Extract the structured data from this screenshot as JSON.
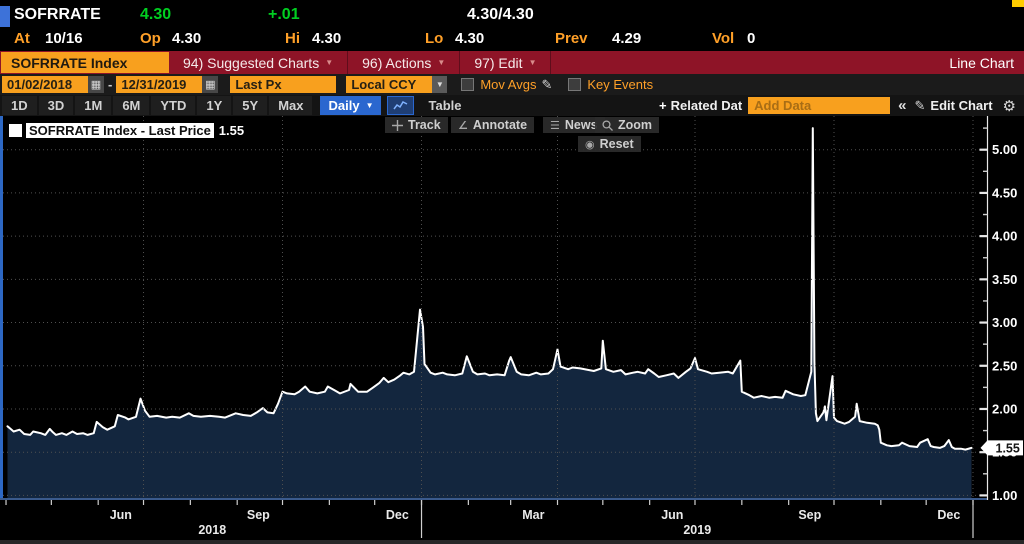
{
  "quote": {
    "ticker": "SOFRRATE",
    "last": "4.30",
    "change": "+.01",
    "bid_ask": "4.30/4.30",
    "fields": [
      {
        "label": "At",
        "value": "10/16"
      },
      {
        "label": "Op",
        "value": "4.30"
      },
      {
        "label": "Hi",
        "value": "4.30"
      },
      {
        "label": "Lo",
        "value": "4.30"
      },
      {
        "label": "Prev",
        "value": "4.29"
      },
      {
        "label": "Vol",
        "value": "0"
      }
    ]
  },
  "menubar": {
    "security": "SOFRRATE Index",
    "items": [
      {
        "label": "94) Suggested Charts"
      },
      {
        "label": "96) Actions"
      },
      {
        "label": "97) Edit"
      }
    ],
    "right_label": "Line Chart"
  },
  "toolbar": {
    "date_from": "01/02/2018",
    "date_to": "12/31/2019",
    "price_field": "Last Px",
    "currency": "Local CCY",
    "mov_avgs_label": "Mov Avgs",
    "key_events_label": "Key Events"
  },
  "periodbar": {
    "ranges": [
      "1D",
      "3D",
      "1M",
      "6M",
      "YTD",
      "1Y",
      "5Y",
      "Max"
    ],
    "frequency": "Daily",
    "table_label": "Table",
    "related_data_label": "Related Dat",
    "add_data_placeholder": "Add Data",
    "collapse_label": "«",
    "edit_chart_label": "Edit Chart"
  },
  "chart_tools": {
    "track": "Track",
    "annotate": "Annotate",
    "news": "News",
    "zoom": "Zoom",
    "reset": "Reset"
  },
  "legend": {
    "label": "SOFRRATE Index - Last Price",
    "value": "1.55"
  },
  "colors": {
    "amber": "#ffa028",
    "orange_box": "#f8a01e",
    "green": "#00cf21",
    "menu_red": "#8e1427",
    "selected_blue": "#2a67cf",
    "area_fill": "#13263e",
    "line": "#ffffff",
    "gridline": "#505050"
  },
  "chart_data": {
    "type": "area",
    "title": "SOFRRATE Index - Last Price",
    "xlabel": "",
    "ylabel": "",
    "ylim": [
      0.97,
      5.39
    ],
    "y_ticks": [
      1.0,
      1.5,
      2.0,
      2.5,
      3.0,
      3.5,
      4.0,
      4.5,
      5.0
    ],
    "grid_on": true,
    "legend_position": "top-left",
    "last_price": 1.55,
    "last_price_label": "1.55",
    "x_domain": [
      "2018-03-30",
      "2020-01-01"
    ],
    "grid_dates": [
      "2018-07-01",
      "2018-10-01",
      "2019-01-01",
      "2019-04-01",
      "2019-07-01",
      "2019-10-01",
      "2020-01-01"
    ],
    "x_month_labels": [
      {
        "label": "Jun",
        "date": "2018-06-16"
      },
      {
        "label": "Sep",
        "date": "2018-09-15"
      },
      {
        "label": "Dec",
        "date": "2018-12-16"
      },
      {
        "label": "Mar",
        "date": "2019-03-16"
      },
      {
        "label": "Jun",
        "date": "2019-06-16"
      },
      {
        "label": "Sep",
        "date": "2019-09-15"
      },
      {
        "label": "Dec",
        "date": "2019-12-16"
      }
    ],
    "year_tick_dates": [
      "2019-01-01",
      "2020-01-01"
    ],
    "year_labels": [
      {
        "label": "2018",
        "from": "2018-03-30",
        "to": "2019-01-01"
      },
      {
        "label": "2019",
        "from": "2019-01-01",
        "to": "2020-01-01"
      }
    ],
    "series": [
      {
        "name": "SOFRRATE Index - Last Price",
        "points": [
          [
            "2018-04-02",
            1.8
          ],
          [
            "2018-04-04",
            1.77
          ],
          [
            "2018-04-06",
            1.74
          ],
          [
            "2018-04-10",
            1.76
          ],
          [
            "2018-04-13",
            1.71
          ],
          [
            "2018-04-17",
            1.7
          ],
          [
            "2018-04-19",
            1.74
          ],
          [
            "2018-04-24",
            1.72
          ],
          [
            "2018-04-27",
            1.7
          ],
          [
            "2018-04-30",
            1.77
          ],
          [
            "2018-05-02",
            1.73
          ],
          [
            "2018-05-04",
            1.7
          ],
          [
            "2018-05-08",
            1.72
          ],
          [
            "2018-05-11",
            1.7
          ],
          [
            "2018-05-15",
            1.74
          ],
          [
            "2018-05-18",
            1.71
          ],
          [
            "2018-05-22",
            1.72
          ],
          [
            "2018-05-25",
            1.7
          ],
          [
            "2018-05-29",
            1.72
          ],
          [
            "2018-05-31",
            1.85
          ],
          [
            "2018-06-04",
            1.79
          ],
          [
            "2018-06-07",
            1.76
          ],
          [
            "2018-06-12",
            1.8
          ],
          [
            "2018-06-14",
            1.93
          ],
          [
            "2018-06-19",
            1.9
          ],
          [
            "2018-06-21",
            1.88
          ],
          [
            "2018-06-26",
            1.91
          ],
          [
            "2018-06-29",
            2.12
          ],
          [
            "2018-07-02",
            1.98
          ],
          [
            "2018-07-05",
            1.91
          ],
          [
            "2018-07-10",
            1.92
          ],
          [
            "2018-07-16",
            1.9
          ],
          [
            "2018-07-20",
            1.91
          ],
          [
            "2018-07-25",
            1.9
          ],
          [
            "2018-07-31",
            1.95
          ],
          [
            "2018-08-03",
            1.92
          ],
          [
            "2018-08-08",
            1.91
          ],
          [
            "2018-08-14",
            1.92
          ],
          [
            "2018-08-20",
            1.91
          ],
          [
            "2018-08-24",
            1.9
          ],
          [
            "2018-08-31",
            1.95
          ],
          [
            "2018-09-05",
            1.93
          ],
          [
            "2018-09-10",
            1.92
          ],
          [
            "2018-09-14",
            1.96
          ],
          [
            "2018-09-18",
            2.01
          ],
          [
            "2018-09-21",
            1.96
          ],
          [
            "2018-09-25",
            1.95
          ],
          [
            "2018-09-28",
            2.06
          ],
          [
            "2018-10-01",
            2.2
          ],
          [
            "2018-10-04",
            2.18
          ],
          [
            "2018-10-09",
            2.17
          ],
          [
            "2018-10-12",
            2.2
          ],
          [
            "2018-10-16",
            2.26
          ],
          [
            "2018-10-19",
            2.2
          ],
          [
            "2018-10-24",
            2.18
          ],
          [
            "2018-10-29",
            2.2
          ],
          [
            "2018-10-31",
            2.26
          ],
          [
            "2018-11-05",
            2.21
          ],
          [
            "2018-11-08",
            2.18
          ],
          [
            "2018-11-14",
            2.22
          ],
          [
            "2018-11-15",
            2.29
          ],
          [
            "2018-11-20",
            2.2
          ],
          [
            "2018-11-26",
            2.2
          ],
          [
            "2018-11-30",
            2.25
          ],
          [
            "2018-12-04",
            2.3
          ],
          [
            "2018-12-07",
            2.36
          ],
          [
            "2018-12-10",
            2.31
          ],
          [
            "2018-12-14",
            2.34
          ],
          [
            "2018-12-18",
            2.39
          ],
          [
            "2018-12-20",
            2.42
          ],
          [
            "2018-12-24",
            2.4
          ],
          [
            "2018-12-27",
            2.43
          ],
          [
            "2018-12-31",
            3.15
          ],
          [
            "2019-01-02",
            2.95
          ],
          [
            "2019-01-03",
            2.52
          ],
          [
            "2019-01-07",
            2.42
          ],
          [
            "2019-01-10",
            2.4
          ],
          [
            "2019-01-15",
            2.42
          ],
          [
            "2019-01-18",
            2.4
          ],
          [
            "2019-01-23",
            2.39
          ],
          [
            "2019-01-28",
            2.41
          ],
          [
            "2019-01-31",
            2.61
          ],
          [
            "2019-02-04",
            2.43
          ],
          [
            "2019-02-07",
            2.4
          ],
          [
            "2019-02-12",
            2.41
          ],
          [
            "2019-02-15",
            2.39
          ],
          [
            "2019-02-20",
            2.4
          ],
          [
            "2019-02-25",
            2.39
          ],
          [
            "2019-02-28",
            2.56
          ],
          [
            "2019-03-01",
            2.6
          ],
          [
            "2019-03-05",
            2.43
          ],
          [
            "2019-03-08",
            2.4
          ],
          [
            "2019-03-13",
            2.39
          ],
          [
            "2019-03-18",
            2.42
          ],
          [
            "2019-03-21",
            2.4
          ],
          [
            "2019-03-26",
            2.41
          ],
          [
            "2019-03-29",
            2.46
          ],
          [
            "2019-04-01",
            2.69
          ],
          [
            "2019-04-03",
            2.49
          ],
          [
            "2019-04-08",
            2.46
          ],
          [
            "2019-04-11",
            2.48
          ],
          [
            "2019-04-16",
            2.47
          ],
          [
            "2019-04-22",
            2.45
          ],
          [
            "2019-04-25",
            2.44
          ],
          [
            "2019-04-30",
            2.47
          ],
          [
            "2019-05-01",
            2.79
          ],
          [
            "2019-05-03",
            2.46
          ],
          [
            "2019-05-08",
            2.43
          ],
          [
            "2019-05-13",
            2.45
          ],
          [
            "2019-05-16",
            2.4
          ],
          [
            "2019-05-21",
            2.42
          ],
          [
            "2019-05-24",
            2.43
          ],
          [
            "2019-05-29",
            2.41
          ],
          [
            "2019-05-31",
            2.46
          ],
          [
            "2019-06-04",
            2.41
          ],
          [
            "2019-06-07",
            2.37
          ],
          [
            "2019-06-12",
            2.39
          ],
          [
            "2019-06-17",
            2.41
          ],
          [
            "2019-06-20",
            2.36
          ],
          [
            "2019-06-25",
            2.43
          ],
          [
            "2019-06-28",
            2.47
          ],
          [
            "2019-07-01",
            2.59
          ],
          [
            "2019-07-03",
            2.46
          ],
          [
            "2019-07-09",
            2.43
          ],
          [
            "2019-07-12",
            2.41
          ],
          [
            "2019-07-17",
            2.42
          ],
          [
            "2019-07-23",
            2.43
          ],
          [
            "2019-07-26",
            2.41
          ],
          [
            "2019-07-31",
            2.56
          ],
          [
            "2019-08-01",
            2.2
          ],
          [
            "2019-08-06",
            2.16
          ],
          [
            "2019-08-09",
            2.13
          ],
          [
            "2019-08-14",
            2.15
          ],
          [
            "2019-08-19",
            2.13
          ],
          [
            "2019-08-23",
            2.14
          ],
          [
            "2019-08-28",
            2.13
          ],
          [
            "2019-08-30",
            2.21
          ],
          [
            "2019-09-04",
            2.17
          ],
          [
            "2019-09-09",
            2.15
          ],
          [
            "2019-09-12",
            2.16
          ],
          [
            "2019-09-16",
            2.43
          ],
          [
            "2019-09-17",
            5.25
          ],
          [
            "2019-09-18",
            2.55
          ],
          [
            "2019-09-19",
            1.95
          ],
          [
            "2019-09-20",
            1.86
          ],
          [
            "2019-09-24",
            1.96
          ],
          [
            "2019-09-25",
            2.03
          ],
          [
            "2019-09-26",
            1.87
          ],
          [
            "2019-09-30",
            2.38
          ],
          [
            "2019-10-01",
            1.9
          ],
          [
            "2019-10-03",
            1.86
          ],
          [
            "2019-10-08",
            1.83
          ],
          [
            "2019-10-11",
            1.85
          ],
          [
            "2019-10-15",
            1.91
          ],
          [
            "2019-10-16",
            2.06
          ],
          [
            "2019-10-18",
            1.86
          ],
          [
            "2019-10-23",
            1.84
          ],
          [
            "2019-10-28",
            1.83
          ],
          [
            "2019-10-30",
            1.81
          ],
          [
            "2019-10-31",
            1.76
          ],
          [
            "2019-11-01",
            1.61
          ],
          [
            "2019-11-05",
            1.58
          ],
          [
            "2019-11-08",
            1.57
          ],
          [
            "2019-11-13",
            1.58
          ],
          [
            "2019-11-15",
            1.61
          ],
          [
            "2019-11-20",
            1.57
          ],
          [
            "2019-11-25",
            1.56
          ],
          [
            "2019-11-27",
            1.61
          ],
          [
            "2019-12-02",
            1.65
          ],
          [
            "2019-12-04",
            1.57
          ],
          [
            "2019-12-06",
            1.56
          ],
          [
            "2019-12-10",
            1.55
          ],
          [
            "2019-12-13",
            1.57
          ],
          [
            "2019-12-16",
            1.64
          ],
          [
            "2019-12-18",
            1.56
          ],
          [
            "2019-12-20",
            1.54
          ],
          [
            "2019-12-24",
            1.54
          ],
          [
            "2019-12-27",
            1.53
          ],
          [
            "2019-12-31",
            1.55
          ]
        ]
      }
    ]
  }
}
